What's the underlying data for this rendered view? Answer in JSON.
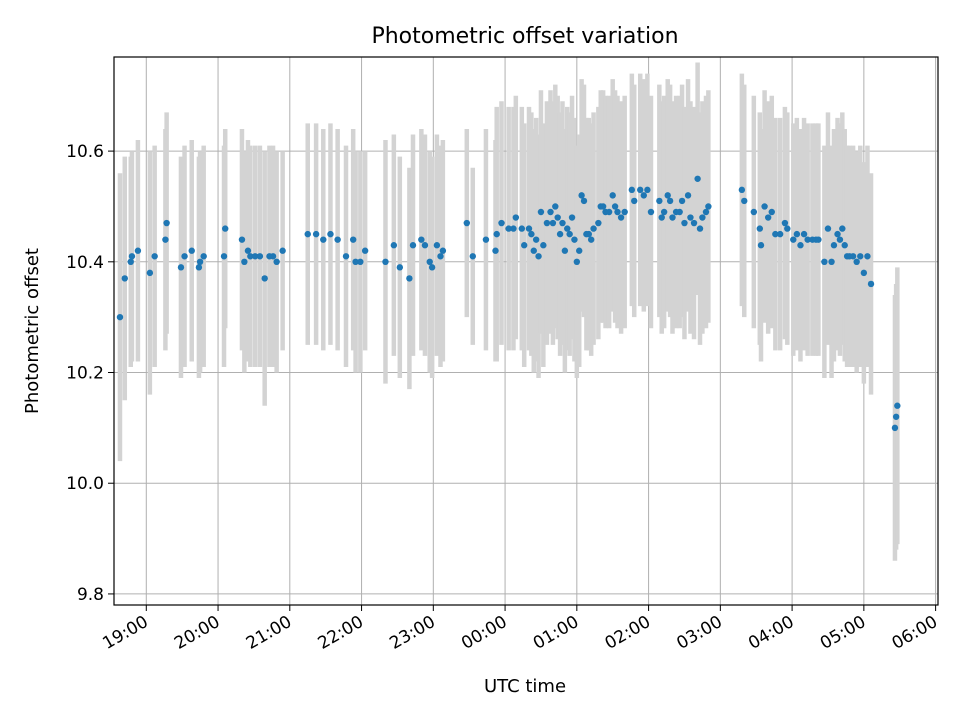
{
  "chart_data": {
    "type": "scatter",
    "title": "Photometric offset variation",
    "xlabel": "UTC time",
    "ylabel": "Photometric offset",
    "x_ticks": [
      "19:00",
      "20:00",
      "21:00",
      "22:00",
      "23:00",
      "00:00",
      "01:00",
      "02:00",
      "03:00",
      "04:00",
      "05:00",
      "06:00"
    ],
    "y_ticks": [
      "9.8",
      "10.0",
      "10.2",
      "10.4",
      "10.6"
    ],
    "xlim": [
      "18:33",
      "06:02"
    ],
    "ylim": [
      9.78,
      10.77
    ],
    "grid": true,
    "point_color": "#1f77b4",
    "errorbar_color": "#d3d3d3",
    "points": [
      [
        "18:38",
        10.3,
        0.26
      ],
      [
        "18:42",
        10.37,
        0.22
      ],
      [
        "18:47",
        10.4,
        0.19
      ],
      [
        "18:48",
        10.41,
        0.19
      ],
      [
        "18:53",
        10.42,
        0.2
      ],
      [
        "19:03",
        10.38,
        0.22
      ],
      [
        "19:07",
        10.41,
        0.2
      ],
      [
        "19:16",
        10.44,
        0.2
      ],
      [
        "19:17",
        10.47,
        0.2
      ],
      [
        "19:29",
        10.39,
        0.2
      ],
      [
        "19:32",
        10.41,
        0.2
      ],
      [
        "19:38",
        10.42,
        0.2
      ],
      [
        "19:44",
        10.39,
        0.2
      ],
      [
        "19:45",
        10.4,
        0.2
      ],
      [
        "19:48",
        10.41,
        0.2
      ],
      [
        "20:05",
        10.41,
        0.2
      ],
      [
        "20:06",
        10.46,
        0.18
      ],
      [
        "20:20",
        10.44,
        0.2
      ],
      [
        "20:22",
        10.4,
        0.2
      ],
      [
        "20:25",
        10.42,
        0.2
      ],
      [
        "20:27",
        10.41,
        0.2
      ],
      [
        "20:31",
        10.41,
        0.2
      ],
      [
        "20:35",
        10.41,
        0.2
      ],
      [
        "20:39",
        10.37,
        0.23
      ],
      [
        "20:43",
        10.41,
        0.2
      ],
      [
        "20:46",
        10.41,
        0.2
      ],
      [
        "20:49",
        10.4,
        0.2
      ],
      [
        "20:54",
        10.42,
        0.18
      ],
      [
        "21:15",
        10.45,
        0.2
      ],
      [
        "21:22",
        10.45,
        0.2
      ],
      [
        "21:28",
        10.44,
        0.2
      ],
      [
        "21:34",
        10.45,
        0.2
      ],
      [
        "21:40",
        10.44,
        0.2
      ],
      [
        "21:47",
        10.41,
        0.2
      ],
      [
        "21:53",
        10.44,
        0.2
      ],
      [
        "21:55",
        10.4,
        0.2
      ],
      [
        "21:59",
        10.4,
        0.2
      ],
      [
        "22:03",
        10.42,
        0.18
      ],
      [
        "22:20",
        10.4,
        0.22
      ],
      [
        "22:27",
        10.43,
        0.2
      ],
      [
        "22:32",
        10.39,
        0.2
      ],
      [
        "22:40",
        10.37,
        0.2
      ],
      [
        "22:43",
        10.43,
        0.2
      ],
      [
        "22:50",
        10.44,
        0.2
      ],
      [
        "22:53",
        10.43,
        0.2
      ],
      [
        "22:57",
        10.4,
        0.2
      ],
      [
        "22:59",
        10.39,
        0.2
      ],
      [
        "23:03",
        10.43,
        0.2
      ],
      [
        "23:06",
        10.41,
        0.2
      ],
      [
        "23:08",
        10.42,
        0.2
      ],
      [
        "23:28",
        10.47,
        0.17
      ],
      [
        "23:33",
        10.41,
        0.16
      ],
      [
        "23:44",
        10.44,
        0.2
      ],
      [
        "23:52",
        10.42,
        0.2
      ],
      [
        "23:53",
        10.45,
        0.23
      ],
      [
        "23:57",
        10.47,
        0.22
      ],
      [
        "00:03",
        10.46,
        0.22
      ],
      [
        "00:07",
        10.46,
        0.22
      ],
      [
        "00:09",
        10.48,
        0.22
      ],
      [
        "00:14",
        10.46,
        0.22
      ],
      [
        "00:16",
        10.43,
        0.22
      ],
      [
        "00:20",
        10.46,
        0.22
      ],
      [
        "00:22",
        10.45,
        0.22
      ],
      [
        "00:24",
        10.42,
        0.22
      ],
      [
        "00:26",
        10.44,
        0.22
      ],
      [
        "00:28",
        10.41,
        0.22
      ],
      [
        "00:30",
        10.49,
        0.22
      ],
      [
        "00:32",
        10.43,
        0.22
      ],
      [
        "00:35",
        10.47,
        0.22
      ],
      [
        "00:38",
        10.49,
        0.22
      ],
      [
        "00:40",
        10.47,
        0.22
      ],
      [
        "00:42",
        10.5,
        0.22
      ],
      [
        "00:44",
        10.48,
        0.22
      ],
      [
        "00:46",
        10.45,
        0.22
      ],
      [
        "00:48",
        10.47,
        0.22
      ],
      [
        "00:50",
        10.42,
        0.22
      ],
      [
        "00:52",
        10.46,
        0.22
      ],
      [
        "00:54",
        10.45,
        0.22
      ],
      [
        "00:56",
        10.48,
        0.22
      ],
      [
        "00:58",
        10.44,
        0.22
      ],
      [
        "01:00",
        10.4,
        0.21
      ],
      [
        "01:02",
        10.42,
        0.21
      ],
      [
        "01:04",
        10.52,
        0.21
      ],
      [
        "01:06",
        10.51,
        0.21
      ],
      [
        "01:08",
        10.45,
        0.21
      ],
      [
        "01:10",
        10.45,
        0.21
      ],
      [
        "01:12",
        10.44,
        0.21
      ],
      [
        "01:14",
        10.46,
        0.21
      ],
      [
        "01:18",
        10.47,
        0.21
      ],
      [
        "01:20",
        10.5,
        0.21
      ],
      [
        "01:22",
        10.5,
        0.21
      ],
      [
        "01:24",
        10.49,
        0.21
      ],
      [
        "01:27",
        10.49,
        0.21
      ],
      [
        "01:30",
        10.52,
        0.21
      ],
      [
        "01:32",
        10.5,
        0.21
      ],
      [
        "01:34",
        10.49,
        0.21
      ],
      [
        "01:37",
        10.48,
        0.21
      ],
      [
        "01:40",
        10.49,
        0.21
      ],
      [
        "01:46",
        10.53,
        0.21
      ],
      [
        "01:48",
        10.51,
        0.21
      ],
      [
        "01:53",
        10.53,
        0.21
      ],
      [
        "01:56",
        10.52,
        0.21
      ],
      [
        "01:59",
        10.53,
        0.21
      ],
      [
        "02:02",
        10.49,
        0.21
      ],
      [
        "02:09",
        10.51,
        0.21
      ],
      [
        "02:11",
        10.48,
        0.21
      ],
      [
        "02:13",
        10.49,
        0.21
      ],
      [
        "02:16",
        10.52,
        0.21
      ],
      [
        "02:18",
        10.51,
        0.21
      ],
      [
        "02:20",
        10.48,
        0.21
      ],
      [
        "02:23",
        10.49,
        0.21
      ],
      [
        "02:26",
        10.49,
        0.21
      ],
      [
        "02:28",
        10.51,
        0.21
      ],
      [
        "02:30",
        10.47,
        0.21
      ],
      [
        "02:33",
        10.52,
        0.21
      ],
      [
        "02:35",
        10.48,
        0.21
      ],
      [
        "02:38",
        10.47,
        0.21
      ],
      [
        "02:41",
        10.55,
        0.21
      ],
      [
        "02:43",
        10.46,
        0.21
      ],
      [
        "02:45",
        10.48,
        0.21
      ],
      [
        "02:48",
        10.49,
        0.21
      ],
      [
        "02:50",
        10.5,
        0.21
      ],
      [
        "03:18",
        10.53,
        0.21
      ],
      [
        "03:20",
        10.51,
        0.21
      ],
      [
        "03:28",
        10.49,
        0.21
      ],
      [
        "03:33",
        10.46,
        0.21
      ],
      [
        "03:34",
        10.43,
        0.21
      ],
      [
        "03:37",
        10.5,
        0.21
      ],
      [
        "03:40",
        10.48,
        0.21
      ],
      [
        "03:43",
        10.49,
        0.21
      ],
      [
        "03:46",
        10.45,
        0.21
      ],
      [
        "03:50",
        10.45,
        0.21
      ],
      [
        "03:54",
        10.47,
        0.21
      ],
      [
        "03:56",
        10.46,
        0.21
      ],
      [
        "04:01",
        10.44,
        0.21
      ],
      [
        "04:04",
        10.45,
        0.21
      ],
      [
        "04:07",
        10.43,
        0.21
      ],
      [
        "04:10",
        10.45,
        0.21
      ],
      [
        "04:13",
        10.44,
        0.21
      ],
      [
        "04:17",
        10.44,
        0.21
      ],
      [
        "04:20",
        10.44,
        0.21
      ],
      [
        "04:22",
        10.44,
        0.21
      ],
      [
        "04:27",
        10.4,
        0.21
      ],
      [
        "04:30",
        10.46,
        0.21
      ],
      [
        "04:33",
        10.4,
        0.21
      ],
      [
        "04:35",
        10.43,
        0.21
      ],
      [
        "04:38",
        10.45,
        0.21
      ],
      [
        "04:40",
        10.44,
        0.21
      ],
      [
        "04:42",
        10.46,
        0.21
      ],
      [
        "04:44",
        10.43,
        0.21
      ],
      [
        "04:46",
        10.41,
        0.2
      ],
      [
        "04:48",
        10.41,
        0.2
      ],
      [
        "04:51",
        10.41,
        0.2
      ],
      [
        "04:54",
        10.4,
        0.2
      ],
      [
        "04:57",
        10.41,
        0.2
      ],
      [
        "05:00",
        10.38,
        0.2
      ],
      [
        "05:03",
        10.41,
        0.2
      ],
      [
        "05:06",
        10.36,
        0.2
      ],
      [
        "05:26",
        10.1,
        0.24
      ],
      [
        "05:27",
        10.12,
        0.24
      ],
      [
        "05:28",
        10.14,
        0.25
      ]
    ]
  }
}
